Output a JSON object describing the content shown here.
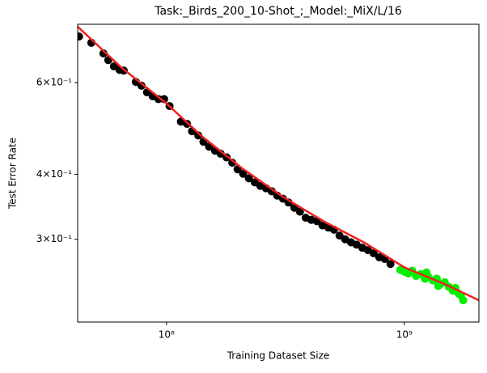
{
  "chart_data": {
    "type": "scatter",
    "title": "Task:_Birds_200_10-Shot_;_Model:_MiX/L/16",
    "xlabel": "Training Dataset Size",
    "ylabel": "Test Error Rate",
    "xlog": true,
    "ylog": true,
    "xlim": [
      42300000.0,
      2060000000.0
    ],
    "ylim": [
      0.777,
      0.208
    ],
    "xticks": [
      {
        "value": 100000000,
        "label": "10⁸"
      },
      {
        "value": 1000000000,
        "label": "10⁹"
      }
    ],
    "yticks": [
      {
        "value": 0.6,
        "label": "6×10⁻¹"
      },
      {
        "value": 0.4,
        "label": "4×10⁻¹"
      },
      {
        "value": 0.3,
        "label": "3×10⁻¹"
      }
    ],
    "series": [
      {
        "mode": "markers",
        "color": "#000000",
        "x": [
          42900000.0,
          48300000.0,
          54300000.0,
          56900000.0,
          60100000.0,
          63500000.0,
          66100000.0,
          74300000.0,
          78500000.0,
          82800000.0,
          87500000.0,
          92500000.0,
          97700000.0,
          103000000.0,
          115000000.0,
          122000000.0,
          128000000.0,
          136000000.0,
          143000000.0,
          151000000.0,
          160000000.0,
          169000000.0,
          179000000.0,
          189000000.0,
          199000000.0,
          210000000.0,
          222000000.0,
          235000000.0,
          248000000.0,
          262000000.0,
          277000000.0,
          292000000.0,
          309000000.0,
          326000000.0,
          345000000.0,
          364000000.0,
          385000000.0,
          406000000.0,
          429000000.0,
          453000000.0,
          479000000.0,
          506000000.0,
          534000000.0,
          564000000.0,
          597000000.0,
          630000000.0,
          666000000.0,
          703000000.0,
          743000000.0,
          785000000.0,
          828000000.0,
          875000000.0
        ],
        "values": [
          0.736,
          0.716,
          0.683,
          0.663,
          0.645,
          0.635,
          0.633,
          0.602,
          0.592,
          0.575,
          0.565,
          0.558,
          0.558,
          0.541,
          0.505,
          0.5,
          0.484,
          0.475,
          0.462,
          0.452,
          0.444,
          0.438,
          0.431,
          0.421,
          0.409,
          0.401,
          0.393,
          0.386,
          0.38,
          0.376,
          0.371,
          0.364,
          0.359,
          0.353,
          0.345,
          0.339,
          0.33,
          0.327,
          0.325,
          0.319,
          0.316,
          0.313,
          0.305,
          0.3,
          0.296,
          0.293,
          0.289,
          0.286,
          0.282,
          0.277,
          0.275,
          0.269
        ]
      },
      {
        "mode": "markers",
        "color": "#00ee00",
        "x": [
          962000000.0,
          1000000000.0,
          1040000000.0,
          1080000000.0,
          1120000000.0,
          1170000000.0,
          1220000000.0,
          1260000000.0,
          1320000000.0,
          1370000000.0,
          1420000000.0,
          1480000000.0,
          1540000000.0,
          1600000000.0,
          1640000000.0,
          1690000000.0,
          1730000000.0,
          1770000000.0,
          1240000000.0,
          1390000000.0
        ],
        "values": [
          0.262,
          0.26,
          0.258,
          0.261,
          0.255,
          0.257,
          0.252,
          0.254,
          0.25,
          0.252,
          0.246,
          0.248,
          0.243,
          0.239,
          0.242,
          0.236,
          0.234,
          0.229,
          0.259,
          0.244
        ]
      },
      {
        "mode": "line",
        "color": "#ee2222",
        "x": [
          42300000.0,
          64500000.0,
          100000000.0,
          141000000.0,
          209000000.0,
          309000000.0,
          457000000.0,
          676000000.0,
          1000000000.0,
          1480000000.0,
          2060000000.0
        ],
        "values": [
          0.769,
          0.642,
          0.547,
          0.473,
          0.41,
          0.362,
          0.325,
          0.296,
          0.265,
          0.246,
          0.229
        ]
      }
    ]
  }
}
